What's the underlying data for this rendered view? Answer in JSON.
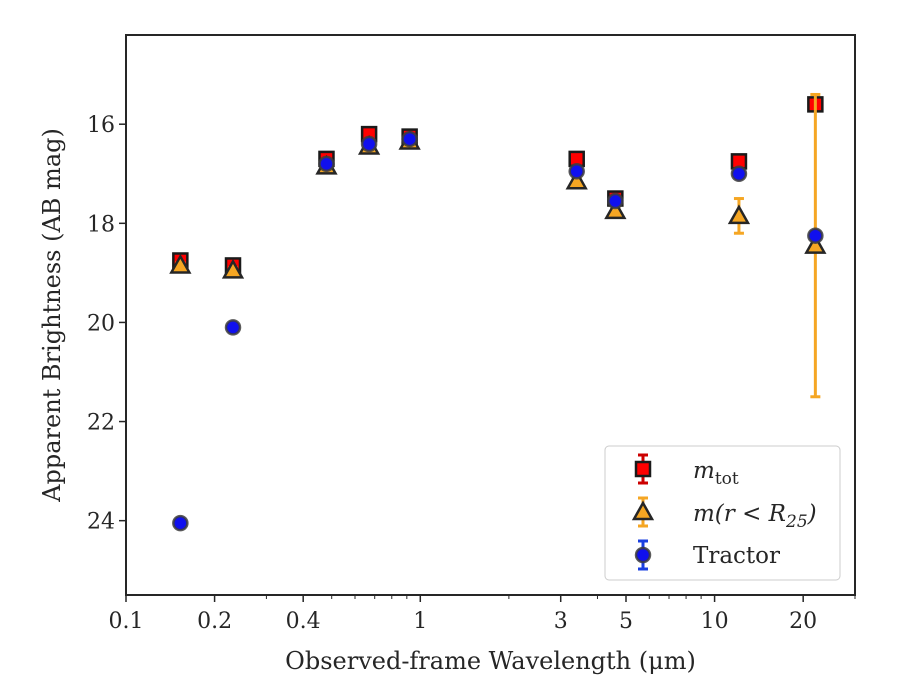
{
  "chart_data": {
    "type": "scatter",
    "xlabel": "Observed-frame Wavelength (μm)",
    "ylabel": "Apparent Brightness (AB mag)",
    "xscale": "log",
    "xlim": [
      0.1,
      30
    ],
    "ylim": [
      25.5,
      14.2
    ],
    "y_inverted": true,
    "grid": false,
    "legend_position": "lower-right",
    "xticks": [
      {
        "value": 0.1,
        "label": "0.1"
      },
      {
        "value": 0.2,
        "label": "0.2"
      },
      {
        "value": 0.4,
        "label": "0.4"
      },
      {
        "value": 1,
        "label": "1"
      },
      {
        "value": 3,
        "label": "3"
      },
      {
        "value": 5,
        "label": "5"
      },
      {
        "value": 10,
        "label": "10"
      },
      {
        "value": 20,
        "label": "20"
      }
    ],
    "yticks": [
      {
        "value": 16,
        "label": "16"
      },
      {
        "value": 18,
        "label": "18"
      },
      {
        "value": 20,
        "label": "20"
      },
      {
        "value": 22,
        "label": "22"
      },
      {
        "value": 24,
        "label": "24"
      }
    ],
    "series": [
      {
        "name": "m_tot",
        "legend_main": "m",
        "legend_sub": "tot",
        "marker": "square",
        "color": "#ff0000",
        "edge": "#1a1a1a",
        "errcolor": "#cc0000",
        "points": [
          {
            "x": 0.153,
            "y": 18.75,
            "err": 0.12
          },
          {
            "x": 0.231,
            "y": 18.85,
            "err": 0.12
          },
          {
            "x": 0.48,
            "y": 16.7,
            "err": 0.06
          },
          {
            "x": 0.67,
            "y": 16.2,
            "err": 0.05
          },
          {
            "x": 0.92,
            "y": 16.25,
            "err": 0.05
          },
          {
            "x": 3.4,
            "y": 16.7,
            "err": 0.05
          },
          {
            "x": 4.6,
            "y": 17.5,
            "err": 0.05
          },
          {
            "x": 12.1,
            "y": 16.75,
            "err": 0.05
          },
          {
            "x": 22.0,
            "y": 15.6,
            "err": 0.05
          }
        ]
      },
      {
        "name": "m(r < R_25)",
        "legend_main": "m(r < R",
        "legend_sub": "25",
        "legend_tail": ")",
        "marker": "triangle",
        "color": "#f5a623",
        "edge": "#262626",
        "errcolor": "#f5a623",
        "points": [
          {
            "x": 0.153,
            "y": 18.85,
            "err": 0.05
          },
          {
            "x": 0.231,
            "y": 18.95,
            "err": 0.05
          },
          {
            "x": 0.48,
            "y": 16.85,
            "err": 0.04
          },
          {
            "x": 0.67,
            "y": 16.45,
            "err": 0.04
          },
          {
            "x": 0.92,
            "y": 16.35,
            "err": 0.04
          },
          {
            "x": 3.4,
            "y": 17.15,
            "err": 0.05
          },
          {
            "x": 4.6,
            "y": 17.75,
            "err": 0.06
          },
          {
            "x": 12.1,
            "y": 17.85,
            "err": 0.35
          },
          {
            "x": 22.0,
            "y": 18.45,
            "err": 3.05
          }
        ]
      },
      {
        "name": "Tractor",
        "legend_main": "Tractor",
        "marker": "circle",
        "color": "#1010ee",
        "edge": "#3d3d3d",
        "errcolor": "#1a3fe0",
        "points": [
          {
            "x": 0.153,
            "y": 24.05,
            "err": 0.05
          },
          {
            "x": 0.231,
            "y": 20.1,
            "err": 0.05
          },
          {
            "x": 0.48,
            "y": 16.8,
            "err": 0.03
          },
          {
            "x": 0.67,
            "y": 16.4,
            "err": 0.03
          },
          {
            "x": 0.92,
            "y": 16.3,
            "err": 0.03
          },
          {
            "x": 3.4,
            "y": 16.95,
            "err": 0.04
          },
          {
            "x": 4.6,
            "y": 17.55,
            "err": 0.04
          },
          {
            "x": 12.1,
            "y": 17.0,
            "err": 0.04
          },
          {
            "x": 22.0,
            "y": 18.25,
            "err": 0.08
          }
        ]
      }
    ]
  }
}
